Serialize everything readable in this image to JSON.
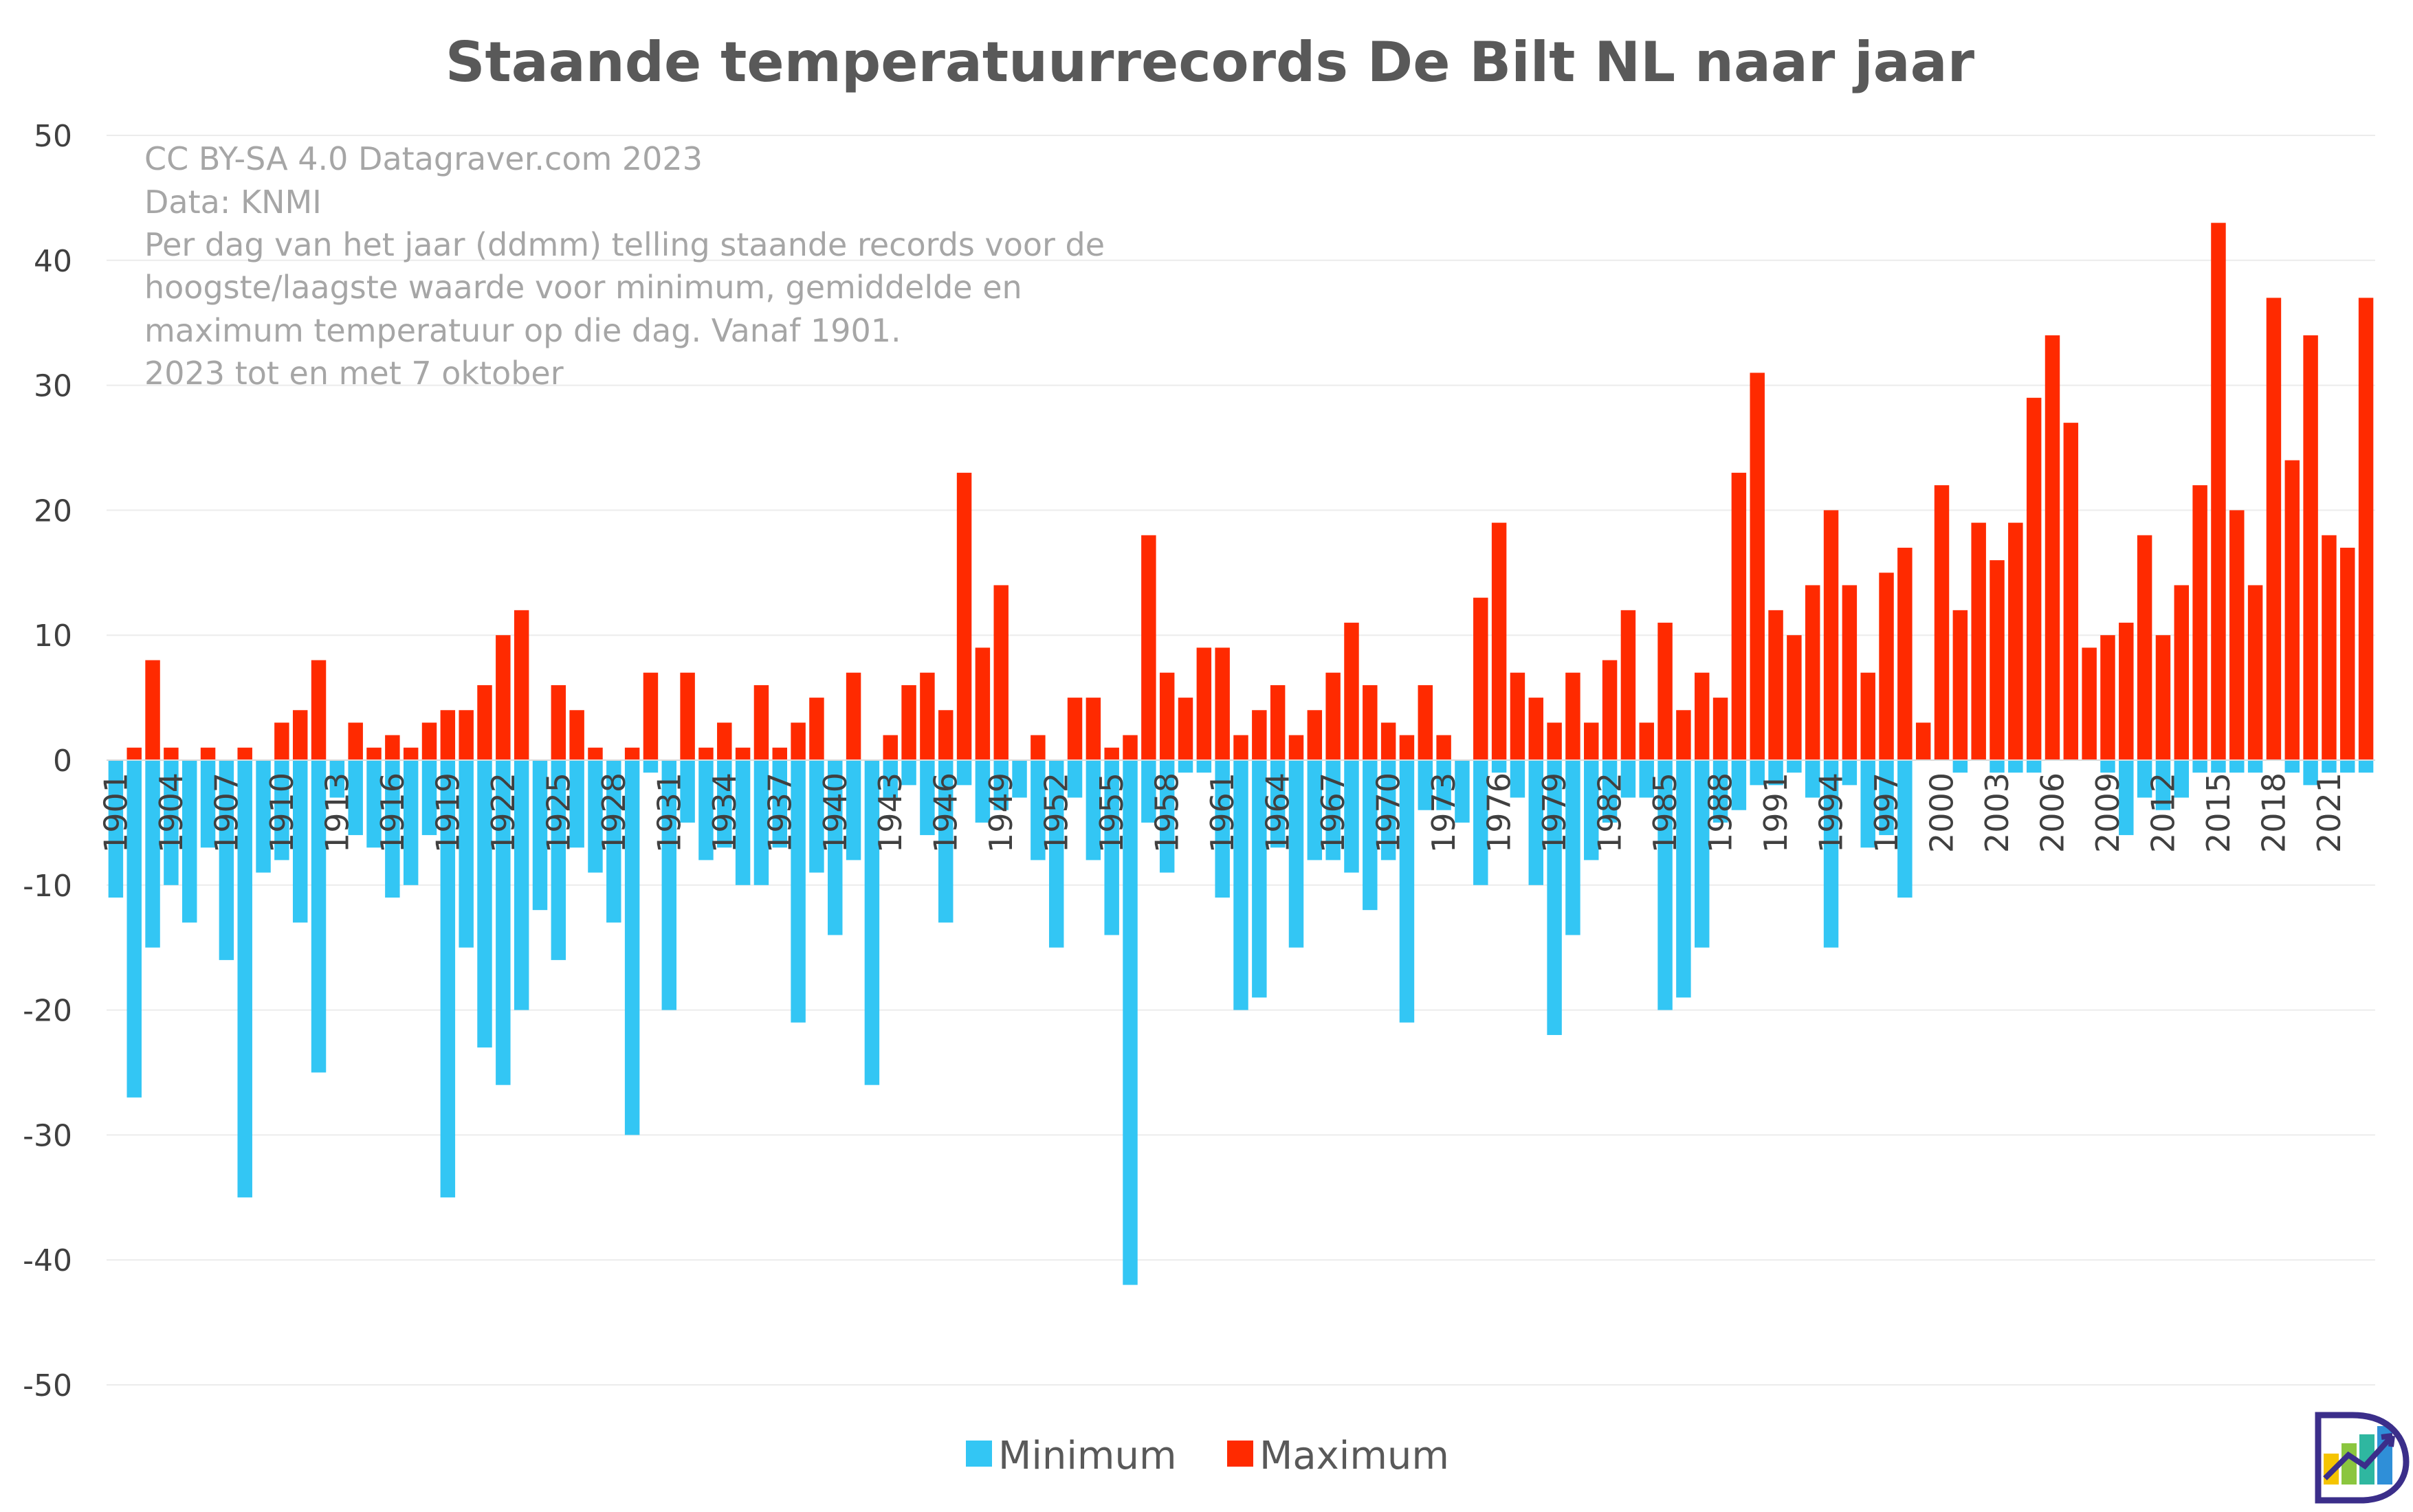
{
  "chart_data": {
    "type": "bar",
    "title": "Staande temperatuurrecords De Bilt NL naar jaar",
    "ylim": [
      -50,
      50
    ],
    "yticks": [
      50,
      40,
      30,
      20,
      10,
      0,
      -10,
      -20,
      -30,
      -40,
      -50
    ],
    "categories": [
      1901,
      1902,
      1903,
      1904,
      1905,
      1906,
      1907,
      1908,
      1909,
      1910,
      1911,
      1912,
      1913,
      1914,
      1915,
      1916,
      1917,
      1918,
      1919,
      1920,
      1921,
      1922,
      1923,
      1924,
      1925,
      1926,
      1927,
      1928,
      1929,
      1930,
      1931,
      1932,
      1933,
      1934,
      1935,
      1936,
      1937,
      1938,
      1939,
      1940,
      1941,
      1942,
      1943,
      1944,
      1945,
      1946,
      1947,
      1948,
      1949,
      1950,
      1951,
      1952,
      1953,
      1954,
      1955,
      1956,
      1957,
      1958,
      1959,
      1960,
      1961,
      1962,
      1963,
      1964,
      1965,
      1966,
      1967,
      1968,
      1969,
      1970,
      1971,
      1972,
      1973,
      1974,
      1975,
      1976,
      1977,
      1978,
      1979,
      1980,
      1981,
      1982,
      1983,
      1984,
      1985,
      1986,
      1987,
      1988,
      1989,
      1990,
      1991,
      1992,
      1993,
      1994,
      1995,
      1996,
      1997,
      1998,
      1999,
      2000,
      2001,
      2002,
      2003,
      2004,
      2005,
      2006,
      2007,
      2008,
      2009,
      2010,
      2011,
      2012,
      2013,
      2014,
      2015,
      2016,
      2017,
      2018,
      2019,
      2020,
      2021,
      2022,
      2023
    ],
    "x_tick_labels": [
      "1901",
      "1904",
      "1907",
      "1910",
      "1913",
      "1916",
      "1919",
      "1922",
      "1925",
      "1928",
      "1931",
      "1934",
      "1937",
      "1940",
      "1943",
      "1946",
      "1949",
      "1952",
      "1955",
      "1958",
      "1961",
      "1964",
      "1967",
      "1970",
      "1973",
      "1976",
      "1979",
      "1982",
      "1985",
      "1988",
      "1991",
      "1994",
      "1997",
      "2000",
      "2003",
      "2006",
      "2009",
      "2012",
      "2015",
      "2018",
      "2021"
    ],
    "series": [
      {
        "name": "Minimum",
        "color": "#33c6f4",
        "values": [
          -11,
          -27,
          -15,
          -10,
          -13,
          -7,
          -16,
          -35,
          -9,
          -8,
          -13,
          -25,
          -3,
          -6,
          -7,
          -11,
          -10,
          -6,
          -35,
          -15,
          -23,
          -26,
          -20,
          -12,
          -16,
          -7,
          -9,
          -13,
          -30,
          -1,
          -20,
          -5,
          -8,
          -7,
          -10,
          -10,
          -7,
          -21,
          -9,
          -14,
          -8,
          -26,
          -3,
          -2,
          -6,
          -13,
          -2,
          -5,
          -4,
          -3,
          -8,
          -15,
          -3,
          -8,
          -14,
          -42,
          -5,
          -9,
          -1,
          -1,
          -11,
          -20,
          -19,
          -7,
          -15,
          -8,
          -8,
          -9,
          -12,
          -8,
          -21,
          -4,
          -4,
          -5,
          -10,
          -1,
          -3,
          -10,
          -22,
          -14,
          -8,
          -5,
          -3,
          -3,
          -20,
          -19,
          -15,
          -5,
          -4,
          -2,
          -2,
          -1,
          -3,
          -15,
          -2,
          -7,
          -6,
          -11,
          0,
          0,
          -1,
          0,
          -1,
          -1,
          -1,
          0,
          0,
          0,
          -1,
          -6,
          -3,
          -4,
          -3,
          -1,
          -1,
          -1,
          -1,
          0,
          -1,
          -2,
          -1,
          -1,
          -1
        ]
      },
      {
        "name": "Maximum",
        "color": "#ff2a00",
        "values": [
          0,
          1,
          8,
          1,
          0,
          1,
          0,
          1,
          0,
          3,
          4,
          8,
          0,
          3,
          1,
          2,
          1,
          3,
          4,
          4,
          6,
          10,
          12,
          0,
          6,
          4,
          1,
          0,
          1,
          7,
          0,
          7,
          1,
          3,
          1,
          6,
          1,
          3,
          5,
          0,
          7,
          0,
          2,
          6,
          7,
          4,
          23,
          9,
          14,
          0,
          2,
          0,
          5,
          5,
          1,
          2,
          18,
          7,
          5,
          9,
          9,
          2,
          4,
          6,
          2,
          4,
          7,
          11,
          6,
          3,
          2,
          6,
          2,
          0,
          13,
          19,
          7,
          5,
          3,
          7,
          3,
          8,
          12,
          3,
          11,
          4,
          7,
          5,
          23,
          31,
          12,
          10,
          14,
          20,
          14,
          7,
          15,
          17,
          3,
          22,
          12,
          19,
          16,
          19,
          29,
          34,
          27,
          9,
          10,
          11,
          18,
          10,
          14,
          22,
          43,
          20,
          14,
          37,
          24,
          34,
          18,
          17,
          37
        ]
      }
    ],
    "annotations": [
      "CC BY-SA 4.0  Datagraver.com 2023",
      "Data: KNMI",
      "Per dag van het jaar (ddmm) telling staande records voor de",
      "hoogste/laagste waarde voor minimum, gemiddelde en",
      "maximum temperatuur op die dag. Vanaf 1901.",
      "2023 tot en met 7 oktober"
    ],
    "legend": [
      "Minimum",
      "Maximum"
    ],
    "legend_position": "bottom-center",
    "grid": true
  },
  "logo": {
    "name": "Datagraver logo"
  }
}
